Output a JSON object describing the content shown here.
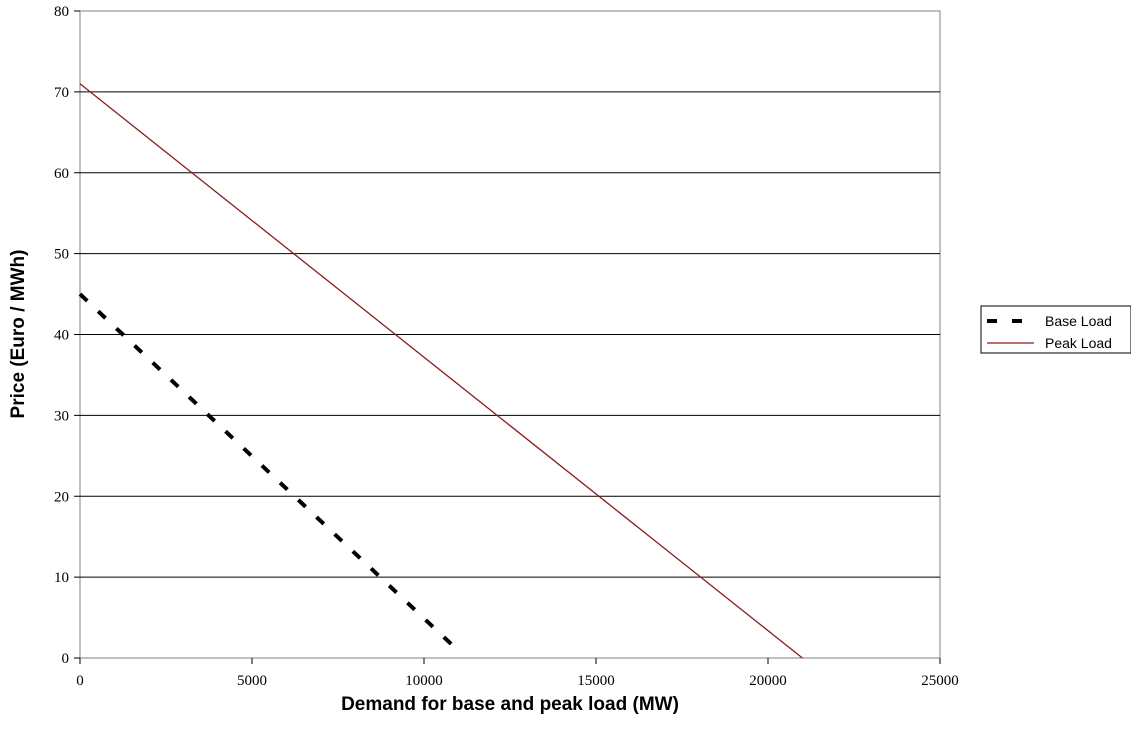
{
  "chart_data": {
    "type": "line",
    "title": "",
    "xlabel": "Demand for base and peak load (MW)",
    "ylabel": "Price (Euro / MWh)",
    "xlim": [
      0,
      25000
    ],
    "ylim": [
      0,
      80
    ],
    "x_ticks": [
      "0",
      "5000",
      "10000",
      "15000",
      "20000",
      "25000"
    ],
    "y_ticks": [
      "0",
      "10",
      "20",
      "30",
      "40",
      "50",
      "60",
      "70",
      "80"
    ],
    "grid": "horizontal",
    "legend_position": "right",
    "series": [
      {
        "name": "Base Load",
        "style": "dashed",
        "color": "#000000",
        "points": [
          [
            0,
            45
          ],
          [
            10850,
            1.5
          ]
        ]
      },
      {
        "name": "Peak Load",
        "style": "solid",
        "color": "#8b1a1a",
        "points": [
          [
            0,
            71
          ],
          [
            21000,
            0
          ]
        ]
      }
    ]
  }
}
